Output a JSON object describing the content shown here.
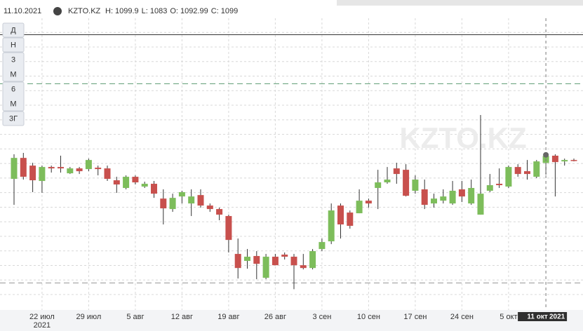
{
  "header": {
    "date": "11.10.2021",
    "ticker": "KZTO.KZ",
    "labels": [
      "H:",
      "L:",
      "O:",
      "C:"
    ]
  },
  "period_buttons": [
    [
      "Д"
    ],
    [
      "Н"
    ],
    [
      "3",
      "М"
    ],
    [
      "6",
      "М"
    ],
    [
      "3Г"
    ]
  ],
  "chart_data": {
    "type": "candlestick",
    "categories": [
      null,
      null,
      null,
      "22 июл",
      null,
      null,
      null,
      null,
      "29 июл",
      null,
      null,
      null,
      null,
      "5 авг",
      null,
      null,
      null,
      null,
      "12 авг",
      null,
      null,
      null,
      null,
      "19 авг",
      null,
      null,
      null,
      null,
      "26 авг",
      null,
      null,
      null,
      null,
      "3 сен",
      null,
      null,
      null,
      null,
      "10 сен",
      null,
      null,
      null,
      null,
      "17 сен",
      null,
      null,
      null,
      null,
      "24 сен",
      null,
      null,
      null,
      null,
      "5 окт",
      null,
      null,
      null,
      "11 окт",
      null,
      null,
      null
    ],
    "x_year": "2021",
    "open": [
      1079.3,
      1097.3,
      1090.7,
      1077.5,
      1089.5,
      1089.5,
      1084.1,
      1088.3,
      1087.7,
      1088.9,
      1088.3,
      1078.1,
      1071.5,
      1081.1,
      1072.7,
      1075.1,
      1062.4,
      1053.4,
      1064.2,
      1058.2,
      1065.4,
      1056.4,
      1053.4,
      1047.4,
      1014.9,
      1008.9,
      1013.1,
      994.4,
      1012.5,
      1014.3,
      1012.5,
      1005.2,
      1002.8,
      1019.1,
      1025.7,
      1056.4,
      1050.4,
      1049.8,
      1060.6,
      1071.5,
      1076.3,
      1088.3,
      1087.1,
      1069.1,
      1070.3,
      1058.2,
      1060.6,
      1058.2,
      1070.3,
      1058.2,
      1048.6,
      1069.1,
      1075.1,
      1072.7,
      1089.5,
      1085.9,
      1081.1,
      1092.99,
      1099.2,
      1094.3,
      1095.5
    ],
    "high": [
      1100.4,
      1101.6,
      1093.1,
      1090.7,
      1090.7,
      1099.2,
      1089.5,
      1089.5,
      1096.7,
      1090.7,
      1090.7,
      1081.1,
      1082.3,
      1082.3,
      1076.9,
      1077.5,
      1070.3,
      1066.6,
      1069.1,
      1070.3,
      1070.3,
      1058.2,
      1054.6,
      1048.6,
      1028.1,
      1019.1,
      1017.3,
      1014.9,
      1014.9,
      1016.1,
      1014.9,
      1014.9,
      1019.1,
      1028.1,
      1058.2,
      1058.2,
      1052.2,
      1070.3,
      1062.4,
      1087.1,
      1089.5,
      1093.1,
      1091.9,
      1082.3,
      1078.7,
      1066.6,
      1070.3,
      1077.5,
      1077.5,
      1078.7,
      1134.1,
      1083.5,
      1088.3,
      1090.7,
      1091.9,
      1095.5,
      1095.5,
      1099.9,
      1100.4,
      1096.7,
      1096.7
    ],
    "low": [
      1057.0,
      1078.7,
      1067.9,
      1067.3,
      1084.7,
      1084.7,
      1083.5,
      1083.5,
      1085.9,
      1082.3,
      1077.5,
      1067.3,
      1070.3,
      1074.5,
      1071.5,
      1063.0,
      1040.2,
      1051.0,
      1058.2,
      1047.4,
      1054.6,
      1051.0,
      1043.8,
      1016.1,
      993.8,
      1002.2,
      993.2,
      993.2,
      1005.2,
      1010.1,
      984.6,
      1001.6,
      1001.6,
      1017.3,
      1023.3,
      1028.1,
      1036.6,
      1049.8,
      1054.6,
      1053.4,
      1075.1,
      1075.1,
      1064.2,
      1066.6,
      1053.4,
      1054.6,
      1058.2,
      1057.0,
      1059.4,
      1057.0,
      1048.6,
      1067.9,
      1071.5,
      1071.5,
      1081.1,
      1078.7,
      1079.9,
      1083,
      1064.2,
      1090.7,
      1094.3
    ],
    "close": [
      1097.3,
      1081.1,
      1078.1,
      1089.5,
      1088.3,
      1088.3,
      1088.3,
      1085.9,
      1095.5,
      1087.7,
      1079.3,
      1074.5,
      1081.1,
      1076.3,
      1075.1,
      1066.6,
      1054.0,
      1063.0,
      1067.9,
      1064.2,
      1056.4,
      1053.4,
      1048.6,
      1026.9,
      1002.8,
      1012.5,
      1006.4,
      1012.5,
      1005.2,
      1012.5,
      1005.2,
      1002.8,
      1017.3,
      1025.1,
      1052.2,
      1040.2,
      1039.0,
      1060.6,
      1058.2,
      1076.3,
      1078.7,
      1083.5,
      1064.8,
      1078.7,
      1057.0,
      1062.4,
      1064.2,
      1069.1,
      1064.2,
      1071.5,
      1066.6,
      1073.9,
      1073.9,
      1089.5,
      1083.5,
      1083.5,
      1094.3,
      1099,
      1093.7,
      1095.5,
      1094.9
    ],
    "hover_index": 57,
    "up_color": "#7dbd5b",
    "down_color": "#c8504d",
    "ylim": [
      968,
      1228
    ],
    "ygrid": [
      980,
      992.5,
      1005,
      1017.5,
      1030,
      1042.5,
      1055,
      1067.5,
      1080,
      1092.5,
      1105,
      1117.5,
      1130,
      1142.5,
      1155,
      1167.5,
      1180,
      1192.5,
      1205,
      1217.5
    ],
    "levels": [
      {
        "value": 1203,
        "color": "#333333",
        "dashed": false
      },
      {
        "value": 1161,
        "color": "#5a9a70",
        "dashed": true
      },
      {
        "value": 990,
        "color": "#999999",
        "dashed": true
      }
    ]
  }
}
